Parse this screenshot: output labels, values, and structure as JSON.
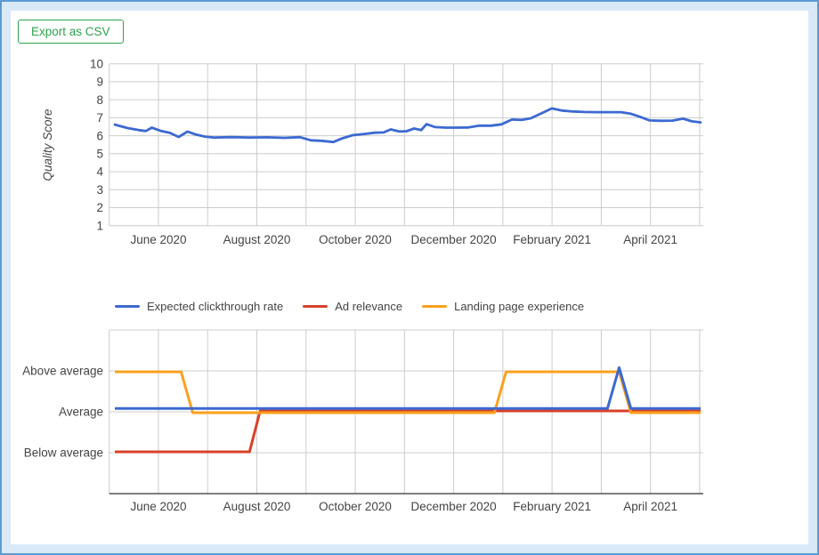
{
  "export_button": {
    "label": "Export as CSV"
  },
  "colors": {
    "frame_border": "#5b9bd5",
    "frame_background": "#d9e9f8",
    "grid": "#cccccc",
    "axis_text": "#444444",
    "axis_line": "#333333",
    "blue": "#3c69d1",
    "red": "#d9402a",
    "orange": "#fba01c",
    "button_green": "#2da24c"
  },
  "chart_data": [
    {
      "type": "line",
      "title": "",
      "xlabel": "",
      "ylabel": "Quality Score",
      "ylim": [
        1,
        10
      ],
      "yticks": [
        1,
        2,
        3,
        4,
        5,
        6,
        7,
        8,
        9,
        10
      ],
      "grid": true,
      "x_span": "May 2020 to May 2021",
      "xtick_labels": [
        "June 2020",
        "August 2020",
        "October 2020",
        "December 2020",
        "February 2021",
        "April 2021"
      ],
      "series": [
        {
          "name": "Quality Score",
          "color_key": "blue",
          "points": [
            [
              0.0,
              6.62
            ],
            [
              0.021,
              6.43
            ],
            [
              0.041,
              6.31
            ],
            [
              0.053,
              6.26
            ],
            [
              0.063,
              6.45
            ],
            [
              0.079,
              6.26
            ],
            [
              0.094,
              6.16
            ],
            [
              0.109,
              5.93
            ],
            [
              0.124,
              6.23
            ],
            [
              0.139,
              6.06
            ],
            [
              0.154,
              5.95
            ],
            [
              0.169,
              5.9
            ],
            [
              0.199,
              5.92
            ],
            [
              0.23,
              5.9
            ],
            [
              0.26,
              5.91
            ],
            [
              0.29,
              5.88
            ],
            [
              0.316,
              5.92
            ],
            [
              0.335,
              5.74
            ],
            [
              0.353,
              5.72
            ],
            [
              0.373,
              5.65
            ],
            [
              0.388,
              5.85
            ],
            [
              0.406,
              6.03
            ],
            [
              0.426,
              6.1
            ],
            [
              0.444,
              6.17
            ],
            [
              0.459,
              6.18
            ],
            [
              0.471,
              6.35
            ],
            [
              0.486,
              6.23
            ],
            [
              0.498,
              6.25
            ],
            [
              0.511,
              6.4
            ],
            [
              0.523,
              6.31
            ],
            [
              0.532,
              6.64
            ],
            [
              0.547,
              6.48
            ],
            [
              0.565,
              6.45
            ],
            [
              0.585,
              6.45
            ],
            [
              0.604,
              6.46
            ],
            [
              0.622,
              6.56
            ],
            [
              0.642,
              6.56
            ],
            [
              0.66,
              6.63
            ],
            [
              0.678,
              6.9
            ],
            [
              0.695,
              6.88
            ],
            [
              0.71,
              6.97
            ],
            [
              0.728,
              7.24
            ],
            [
              0.746,
              7.52
            ],
            [
              0.763,
              7.4
            ],
            [
              0.781,
              7.35
            ],
            [
              0.801,
              7.32
            ],
            [
              0.822,
              7.31
            ],
            [
              0.843,
              7.31
            ],
            [
              0.864,
              7.31
            ],
            [
              0.881,
              7.22
            ],
            [
              0.897,
              7.05
            ],
            [
              0.913,
              6.85
            ],
            [
              0.932,
              6.83
            ],
            [
              0.952,
              6.84
            ],
            [
              0.97,
              6.95
            ],
            [
              0.985,
              6.8
            ],
            [
              1.0,
              6.74
            ]
          ]
        }
      ]
    },
    {
      "type": "line-categorical",
      "title": "",
      "legend_position": "top",
      "grid": true,
      "categories": [
        "Below average",
        "Average",
        "Above average"
      ],
      "ytick_labels": [
        "Above average",
        "Average",
        "Below average"
      ],
      "x_span": "May 2020 to May 2021",
      "xtick_labels": [
        "June 2020",
        "August 2020",
        "October 2020",
        "December 2020",
        "February 2021",
        "April 2021"
      ],
      "level_map": {
        "1": "Below average",
        "2": "Average",
        "3": "Above average"
      },
      "series": [
        {
          "name": "Expected clickthrough rate",
          "color_key": "blue",
          "points": [
            [
              0.0,
              2
            ],
            [
              0.841,
              2
            ],
            [
              0.861,
              3
            ],
            [
              0.881,
              2
            ],
            [
              1.0,
              2
            ]
          ]
        },
        {
          "name": "Ad relevance",
          "color_key": "red",
          "points": [
            [
              0.0,
              1
            ],
            [
              0.23,
              1
            ],
            [
              0.248,
              2
            ],
            [
              1.0,
              2
            ]
          ]
        },
        {
          "name": "Landing page experience",
          "color_key": "orange",
          "points": [
            [
              0.0,
              3
            ],
            [
              0.113,
              3
            ],
            [
              0.133,
              2
            ],
            [
              0.648,
              2
            ],
            [
              0.668,
              3
            ],
            [
              0.861,
              3
            ],
            [
              0.881,
              2
            ],
            [
              1.0,
              2
            ]
          ]
        }
      ]
    }
  ]
}
